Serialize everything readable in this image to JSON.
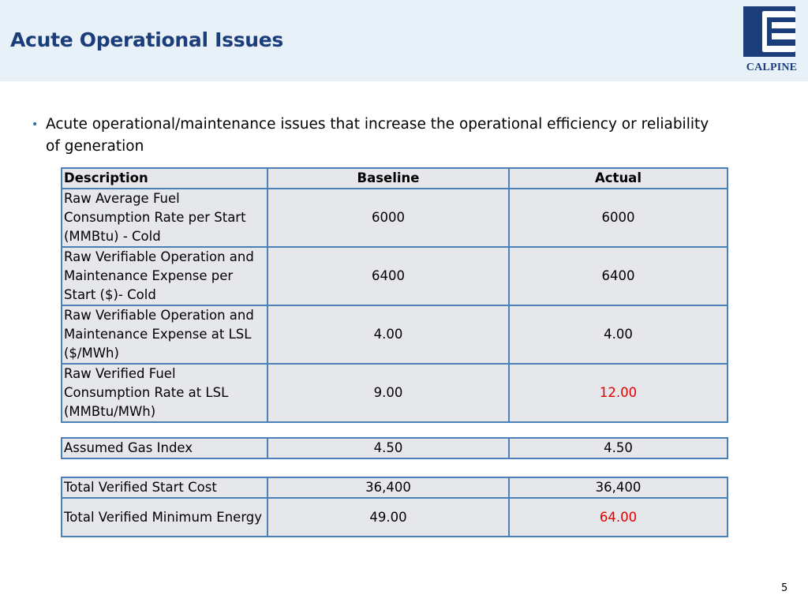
{
  "slide": {
    "title": "Acute Operational Issues",
    "logo_text": "CALPINE",
    "bullet": "Acute operational/maintenance issues that increase the operational efficiency or reliability of generation",
    "page_number": "5"
  },
  "table": {
    "headers": {
      "description": "Description",
      "baseline": "Baseline",
      "actual": "Actual"
    },
    "rows": [
      {
        "description": "Raw Average Fuel Consumption Rate per Start (MMBtu) - Cold",
        "baseline": "6000",
        "actual": "6000"
      },
      {
        "description": "Raw Verifiable Operation and Maintenance Expense per Start ($)- Cold",
        "baseline": "6400",
        "actual": "6400"
      },
      {
        "description": "Raw Verifiable Operation and Maintenance Expense at LSL ($/MWh)",
        "baseline": "4.00",
        "actual": "4.00"
      },
      {
        "description": "Raw Verified Fuel Consumption Rate at LSL (MMBtu/MWh)",
        "baseline": "9.00",
        "actual": "12.00"
      }
    ],
    "gas_index": {
      "description": "Assumed Gas Index",
      "baseline": "4.50",
      "actual": "4.50"
    },
    "totals": [
      {
        "description": "Total Verified Start Cost",
        "baseline": "36,400",
        "actual": "36,400"
      },
      {
        "description": "Total Verified Minimum Energy",
        "baseline": "49.00",
        "actual": "64.00"
      }
    ]
  },
  "colors": {
    "title": "#1b3d7a",
    "header_band": "#e8f1f8",
    "table_border": "#4a7fb8",
    "table_fill": "#e6e7eb",
    "highlight": "#e00000"
  },
  "icons": {
    "logo": "calpine-logo-icon"
  }
}
